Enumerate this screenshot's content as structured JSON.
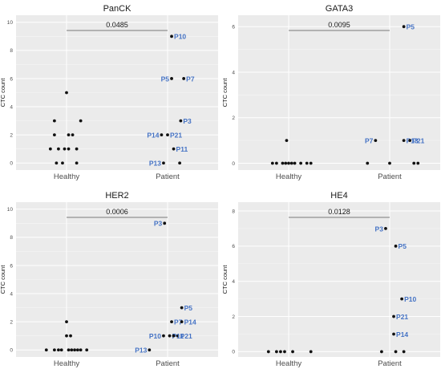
{
  "chart_data": [
    {
      "type": "scatter",
      "title": "PanCK",
      "ylabel": "CTC count",
      "categories": [
        "Healthy",
        "Patient"
      ],
      "ylim": [
        -0.5,
        10.5
      ],
      "yticks": [
        "0",
        "2",
        "4",
        "6",
        "8",
        "10"
      ],
      "pvalue": "0.0485",
      "points": [
        {
          "group": "Healthy",
          "y": 5,
          "dx": 0.0
        },
        {
          "group": "Healthy",
          "y": 3,
          "dx": -0.12
        },
        {
          "group": "Healthy",
          "y": 3,
          "dx": 0.14
        },
        {
          "group": "Healthy",
          "y": 2,
          "dx": -0.12
        },
        {
          "group": "Healthy",
          "y": 2,
          "dx": 0.02
        },
        {
          "group": "Healthy",
          "y": 2,
          "dx": 0.06
        },
        {
          "group": "Healthy",
          "y": 1,
          "dx": -0.16
        },
        {
          "group": "Healthy",
          "y": 1,
          "dx": -0.08
        },
        {
          "group": "Healthy",
          "y": 1,
          "dx": -0.02
        },
        {
          "group": "Healthy",
          "y": 1,
          "dx": 0.02
        },
        {
          "group": "Healthy",
          "y": 1,
          "dx": 0.1
        },
        {
          "group": "Healthy",
          "y": 0,
          "dx": -0.1
        },
        {
          "group": "Healthy",
          "y": 0,
          "dx": -0.04
        },
        {
          "group": "Healthy",
          "y": 0,
          "dx": 0.1
        },
        {
          "group": "Patient",
          "y": 9,
          "dx": 0.04,
          "label": "P10"
        },
        {
          "group": "Patient",
          "y": 6,
          "dx": 0.04,
          "label": "P5"
        },
        {
          "group": "Patient",
          "y": 6,
          "dx": 0.16,
          "label": "P7"
        },
        {
          "group": "Patient",
          "y": 3,
          "dx": 0.13,
          "label": "P3"
        },
        {
          "group": "Patient",
          "y": 2,
          "dx": 0.0,
          "label": "P21"
        },
        {
          "group": "Patient",
          "y": 2,
          "dx": -0.06,
          "label": "P14"
        },
        {
          "group": "Patient",
          "y": 1,
          "dx": 0.06,
          "label": "P11"
        },
        {
          "group": "Patient",
          "y": 0,
          "dx": -0.04,
          "label": "P13"
        },
        {
          "group": "Patient",
          "y": 0,
          "dx": 0.12
        }
      ]
    },
    {
      "type": "scatter",
      "title": "GATA3",
      "ylabel": "CTC count",
      "categories": [
        "Healthy",
        "Patient"
      ],
      "ylim": [
        -0.3,
        6.5
      ],
      "yticks": [
        "0",
        "2",
        "4",
        "6"
      ],
      "pvalue": "0.0095",
      "points": [
        {
          "group": "Healthy",
          "y": 1,
          "dx": -0.02
        },
        {
          "group": "Healthy",
          "y": 0,
          "dx": -0.16
        },
        {
          "group": "Healthy",
          "y": 0,
          "dx": -0.12
        },
        {
          "group": "Healthy",
          "y": 0,
          "dx": -0.06
        },
        {
          "group": "Healthy",
          "y": 0,
          "dx": -0.03
        },
        {
          "group": "Healthy",
          "y": 0,
          "dx": 0.0
        },
        {
          "group": "Healthy",
          "y": 0,
          "dx": 0.03
        },
        {
          "group": "Healthy",
          "y": 0,
          "dx": 0.06
        },
        {
          "group": "Healthy",
          "y": 0,
          "dx": 0.12
        },
        {
          "group": "Healthy",
          "y": 0,
          "dx": 0.18
        },
        {
          "group": "Healthy",
          "y": 0,
          "dx": 0.22
        },
        {
          "group": "Patient",
          "y": 6,
          "dx": 0.14,
          "label": "P5"
        },
        {
          "group": "Patient",
          "y": 1,
          "dx": -0.14,
          "label": "P7"
        },
        {
          "group": "Patient",
          "y": 1,
          "dx": 0.14,
          "label": "P13"
        },
        {
          "group": "Patient",
          "y": 1,
          "dx": 0.2,
          "label": "P21"
        },
        {
          "group": "Patient",
          "y": 0,
          "dx": -0.22
        },
        {
          "group": "Patient",
          "y": 0,
          "dx": 0.0
        },
        {
          "group": "Patient",
          "y": 0,
          "dx": 0.24
        },
        {
          "group": "Patient",
          "y": 0,
          "dx": 0.28
        }
      ]
    },
    {
      "type": "scatter",
      "title": "HER2",
      "ylabel": "CTC count",
      "categories": [
        "Healthy",
        "Patient"
      ],
      "ylim": [
        -0.5,
        10.5
      ],
      "yticks": [
        "0",
        "2",
        "4",
        "6",
        "8",
        "10"
      ],
      "pvalue": "0.0006",
      "points": [
        {
          "group": "Healthy",
          "y": 2,
          "dx": 0.0
        },
        {
          "group": "Healthy",
          "y": 1,
          "dx": 0.0
        },
        {
          "group": "Healthy",
          "y": 1,
          "dx": 0.04
        },
        {
          "group": "Healthy",
          "y": 0,
          "dx": -0.2
        },
        {
          "group": "Healthy",
          "y": 0,
          "dx": -0.12
        },
        {
          "group": "Healthy",
          "y": 0,
          "dx": -0.08
        },
        {
          "group": "Healthy",
          "y": 0,
          "dx": -0.05
        },
        {
          "group": "Healthy",
          "y": 0,
          "dx": 0.02
        },
        {
          "group": "Healthy",
          "y": 0,
          "dx": 0.05
        },
        {
          "group": "Healthy",
          "y": 0,
          "dx": 0.08
        },
        {
          "group": "Healthy",
          "y": 0,
          "dx": 0.11
        },
        {
          "group": "Healthy",
          "y": 0,
          "dx": 0.14
        },
        {
          "group": "Healthy",
          "y": 0,
          "dx": 0.2
        },
        {
          "group": "Patient",
          "y": 9,
          "dx": -0.03,
          "label": "P3"
        },
        {
          "group": "Patient",
          "y": 3,
          "dx": 0.14,
          "label": "P5"
        },
        {
          "group": "Patient",
          "y": 2,
          "dx": 0.04,
          "label": "P7"
        },
        {
          "group": "Patient",
          "y": 2,
          "dx": 0.14,
          "label": "P14"
        },
        {
          "group": "Patient",
          "y": 1,
          "dx": 0.1,
          "label": "P21"
        },
        {
          "group": "Patient",
          "y": 1,
          "dx": -0.04,
          "label": "P10"
        },
        {
          "group": "Patient",
          "y": 1,
          "dx": 0.02,
          "label": "P11"
        },
        {
          "group": "Patient",
          "y": 1,
          "dx": 0.06
        },
        {
          "group": "Patient",
          "y": 0,
          "dx": -0.18,
          "label": "P13"
        }
      ]
    },
    {
      "type": "scatter",
      "title": "HE4",
      "ylabel": "CTC count",
      "categories": [
        "Healthy",
        "Patient"
      ],
      "ylim": [
        -0.3,
        8.5
      ],
      "yticks": [
        "0",
        "2",
        "4",
        "6",
        "8"
      ],
      "pvalue": "0.0128",
      "points": [
        {
          "group": "Healthy",
          "y": 0,
          "dx": -0.2
        },
        {
          "group": "Healthy",
          "y": 0,
          "dx": -0.12
        },
        {
          "group": "Healthy",
          "y": 0,
          "dx": -0.08
        },
        {
          "group": "Healthy",
          "y": 0,
          "dx": -0.04
        },
        {
          "group": "Healthy",
          "y": 0,
          "dx": 0.04
        },
        {
          "group": "Healthy",
          "y": 0,
          "dx": 0.22
        },
        {
          "group": "Patient",
          "y": 7,
          "dx": -0.04,
          "label": "P3"
        },
        {
          "group": "Patient",
          "y": 6,
          "dx": 0.06,
          "label": "P5"
        },
        {
          "group": "Patient",
          "y": 3,
          "dx": 0.12,
          "label": "P10"
        },
        {
          "group": "Patient",
          "y": 2,
          "dx": 0.04,
          "label": "P21"
        },
        {
          "group": "Patient",
          "y": 1,
          "dx": 0.04,
          "label": "P14"
        },
        {
          "group": "Patient",
          "y": 0,
          "dx": -0.08
        },
        {
          "group": "Patient",
          "y": 0,
          "dx": 0.06
        },
        {
          "group": "Patient",
          "y": 0,
          "dx": 0.14
        }
      ]
    }
  ]
}
